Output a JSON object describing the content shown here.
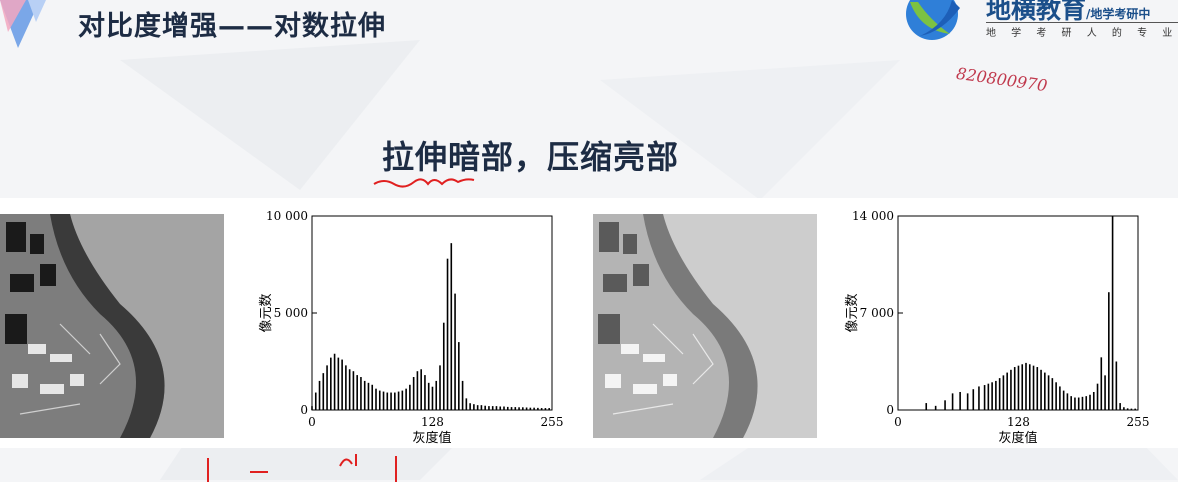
{
  "header": {
    "title": "对比度增强——对数拉伸"
  },
  "logo": {
    "name": "地横教育",
    "slash_text": "/地学考研中",
    "tagline": "地 学 考 研 人 的 专 业 陪 伴"
  },
  "watermark": {
    "text": "820800970"
  },
  "slide": {
    "heading": "拉伸暗部，压缩亮部"
  },
  "colors": {
    "title": "#1d2c44",
    "logo_blue": "#1b4f8a",
    "annotation_red": "#e02020",
    "watermark": "#c0394d"
  },
  "chart_data": [
    {
      "type": "bar",
      "title": "",
      "xlabel": "灰度值",
      "ylabel": "像元数",
      "xlim": [
        0,
        255
      ],
      "ylim": [
        0,
        10000
      ],
      "x_ticks": [
        0,
        128,
        255
      ],
      "x_tick_labels": [
        "0",
        "128",
        "255"
      ],
      "y_ticks": [
        0,
        5000,
        10000
      ],
      "y_tick_labels": [
        "0",
        "5 000",
        "10 000"
      ],
      "x": [
        0,
        4,
        8,
        12,
        16,
        20,
        24,
        28,
        32,
        36,
        40,
        44,
        48,
        52,
        56,
        60,
        64,
        68,
        72,
        76,
        80,
        84,
        88,
        92,
        96,
        100,
        104,
        108,
        112,
        116,
        120,
        124,
        128,
        132,
        136,
        140,
        144,
        148,
        152,
        156,
        160,
        164,
        168,
        172,
        176,
        180,
        184,
        188,
        192,
        196,
        200,
        204,
        208,
        212,
        216,
        220,
        224,
        228,
        232,
        236,
        240,
        244,
        248,
        252
      ],
      "values": [
        200,
        900,
        1500,
        1900,
        2300,
        2700,
        2900,
        2700,
        2600,
        2300,
        2100,
        2000,
        1800,
        1700,
        1500,
        1400,
        1300,
        1100,
        1000,
        950,
        900,
        900,
        900,
        950,
        1000,
        1100,
        1300,
        1700,
        2000,
        2100,
        1800,
        1400,
        1200,
        1500,
        2300,
        4500,
        7800,
        8600,
        6000,
        3500,
        1500,
        600,
        350,
        300,
        250,
        250,
        220,
        200,
        200,
        200,
        180,
        180,
        160,
        150,
        150,
        140,
        140,
        130,
        120,
        120,
        110,
        100,
        100,
        100
      ]
    },
    {
      "type": "bar",
      "title": "",
      "xlabel": "灰度值",
      "ylabel": "像元数",
      "xlim": [
        0,
        255
      ],
      "ylim": [
        0,
        14000
      ],
      "x_ticks": [
        0,
        128,
        255
      ],
      "x_tick_labels": [
        "0",
        "128",
        "255"
      ],
      "y_ticks": [
        0,
        7000,
        14000
      ],
      "y_tick_labels": [
        "0",
        "7 000",
        "14 000"
      ],
      "x": [
        30,
        40,
        50,
        58,
        66,
        74,
        80,
        86,
        92,
        96,
        100,
        104,
        108,
        112,
        116,
        120,
        124,
        128,
        132,
        136,
        140,
        144,
        148,
        152,
        156,
        160,
        164,
        168,
        172,
        176,
        180,
        184,
        188,
        192,
        196,
        200,
        204,
        208,
        212,
        216,
        220,
        224,
        228,
        232,
        236,
        240,
        244,
        248,
        252
      ],
      "values": [
        500,
        300,
        700,
        1200,
        1300,
        1200,
        1500,
        1700,
        1800,
        1900,
        2000,
        2100,
        2300,
        2500,
        2700,
        2900,
        3100,
        3200,
        3300,
        3400,
        3300,
        3200,
        3100,
        2900,
        2700,
        2500,
        2300,
        2000,
        1700,
        1400,
        1200,
        1000,
        900,
        900,
        950,
        1000,
        1100,
        1300,
        1900,
        3800,
        2500,
        8500,
        14000,
        3500,
        500,
        200,
        120,
        100,
        100
      ]
    }
  ]
}
